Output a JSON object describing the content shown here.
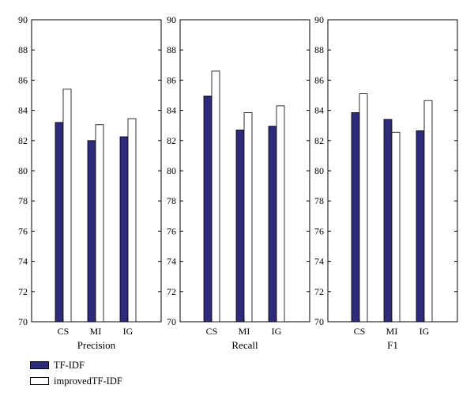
{
  "chart_data": {
    "type": "bar",
    "yrange": [
      70,
      90
    ],
    "yticks": [
      70,
      72,
      74,
      76,
      78,
      80,
      82,
      84,
      86,
      88,
      90
    ],
    "categories": [
      "CS",
      "MI",
      "IG"
    ],
    "legend_position": "bottom-left",
    "colors": {
      "TF-IDF": "#2e2b7a",
      "improvedTF-IDF": "#ffffff"
    },
    "legend": [
      "TF-IDF",
      "improvedTF-IDF"
    ],
    "panels": [
      {
        "xlabel": "Precision",
        "series": [
          {
            "name": "TF-IDF",
            "values": [
              83.2,
              82.0,
              82.25
            ]
          },
          {
            "name": "improvedTF-IDF",
            "values": [
              85.4,
              83.05,
              83.45
            ]
          }
        ]
      },
      {
        "xlabel": "Recall",
        "series": [
          {
            "name": "TF-IDF",
            "values": [
              84.95,
              82.7,
              82.95
            ]
          },
          {
            "name": "improvedTF-IDF",
            "values": [
              86.6,
              83.85,
              84.3
            ]
          }
        ]
      },
      {
        "xlabel": "F1",
        "series": [
          {
            "name": "TF-IDF",
            "values": [
              83.85,
              83.4,
              82.65
            ]
          },
          {
            "name": "improvedTF-IDF",
            "values": [
              85.1,
              82.55,
              84.65
            ]
          }
        ]
      }
    ]
  }
}
